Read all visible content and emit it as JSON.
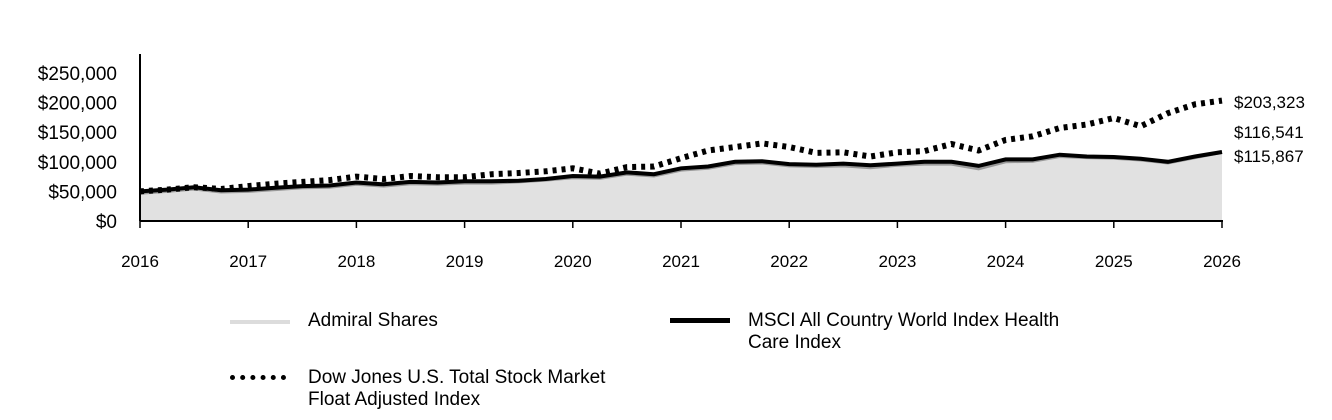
{
  "chart_data": {
    "type": "line",
    "title": "",
    "xlabel": "",
    "ylabel": "",
    "xlim": [
      2016,
      2026
    ],
    "ylim": [
      0,
      282000
    ],
    "x_ticks": [
      "2016",
      "2017",
      "2018",
      "2019",
      "2020",
      "2021",
      "2022",
      "2023",
      "2024",
      "2025",
      "2026"
    ],
    "y_ticks": [
      "$0",
      "$50,000",
      "$100,000",
      "$150,000",
      "$200,000",
      "$250,000"
    ],
    "y_tick_values": [
      0,
      50000,
      100000,
      150000,
      200000,
      250000
    ],
    "grid": false,
    "legend_placement": "bottom",
    "x": [
      2016,
      2016.25,
      2016.5,
      2016.75,
      2017,
      2017.25,
      2017.5,
      2017.75,
      2018,
      2018.25,
      2018.5,
      2018.75,
      2019,
      2019.25,
      2019.5,
      2019.75,
      2020,
      2020.25,
      2020.5,
      2020.75,
      2021,
      2021.25,
      2021.5,
      2021.75,
      2022,
      2022.25,
      2022.5,
      2022.75,
      2023,
      2023.25,
      2023.5,
      2023.75,
      2024,
      2024.25,
      2024.5,
      2024.75,
      2025,
      2025.25,
      2025.5,
      2025.75,
      2026
    ],
    "series": [
      {
        "name": "Admiral Shares",
        "style": "area",
        "color": "#e1e1e1",
        "edge_color": "#999999",
        "end_label": "$115,867",
        "values": [
          47000,
          50000,
          54000,
          49000,
          50000,
          53000,
          56000,
          57000,
          62000,
          59000,
          63000,
          62000,
          64000,
          64000,
          66000,
          69000,
          73000,
          72000,
          79000,
          76000,
          86000,
          89000,
          97000,
          98000,
          93000,
          92000,
          93000,
          90000,
          94000,
          96000,
          96000,
          88000,
          100000,
          101000,
          109000,
          107000,
          106000,
          103000,
          98000,
          107000,
          115867
        ]
      },
      {
        "name": "MSCI All Country World Index Health Care Index",
        "style": "solid",
        "color": "#000000",
        "end_label": "$116,541",
        "values": [
          50000,
          53000,
          57000,
          52000,
          53000,
          56000,
          59000,
          60000,
          65000,
          62000,
          66000,
          65000,
          67000,
          67000,
          68000,
          71000,
          76000,
          75000,
          82000,
          79000,
          89000,
          92000,
          100000,
          101000,
          96000,
          95000,
          97000,
          94000,
          97000,
          100000,
          100000,
          93000,
          104000,
          104000,
          112000,
          109000,
          108000,
          105000,
          100000,
          109000,
          116541
        ]
      },
      {
        "name": "Dow Jones U.S. Total Stock Market Float Adjusted Index",
        "style": "dotted",
        "color": "#000000",
        "end_label": "$203,323",
        "values": [
          50000,
          53000,
          57000,
          54000,
          59000,
          63000,
          66000,
          69000,
          75000,
          71000,
          76000,
          74000,
          74000,
          79000,
          81000,
          84000,
          89000,
          80000,
          91000,
          92000,
          106000,
          119000,
          125000,
          131000,
          125000,
          115000,
          116000,
          109000,
          116000,
          118000,
          130000,
          119000,
          137000,
          143000,
          157000,
          163000,
          174000,
          160000,
          182000,
          197000,
          203323
        ]
      }
    ]
  },
  "legend": {
    "admiral": "Admiral Shares",
    "msci_line1": "MSCI All Country World Index Health",
    "msci_line2": "Care Index",
    "dj_line1": "Dow Jones U.S. Total Stock Market",
    "dj_line2": "Float Adjusted Index"
  }
}
